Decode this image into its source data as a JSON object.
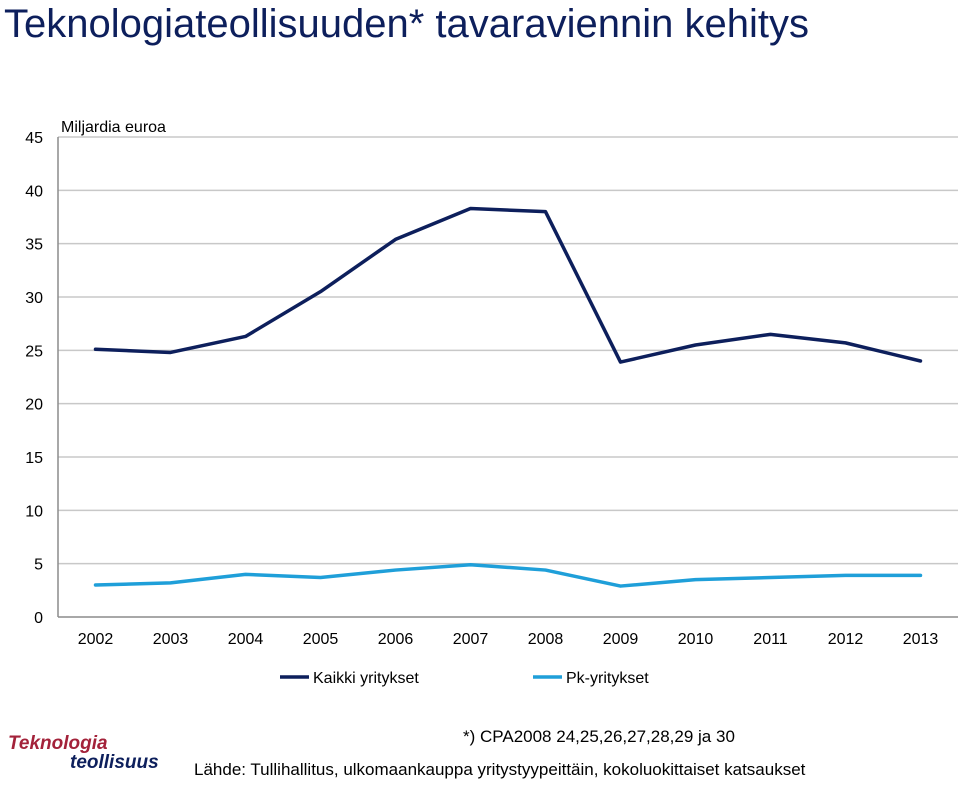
{
  "title": "Teknologiateollisuuden* tavaraviennin kehitys",
  "chart_data": {
    "type": "line",
    "ylabel": "Miljardia euroa",
    "ylim": [
      0,
      45
    ],
    "yticks": [
      "0",
      "5",
      "10",
      "15",
      "20",
      "25",
      "30",
      "35",
      "40",
      "45"
    ],
    "categories": [
      "2002",
      "2003",
      "2004",
      "2005",
      "2006",
      "2007",
      "2008",
      "2009",
      "2010",
      "2011",
      "2012",
      "2013"
    ],
    "grid": true,
    "legend_position": "bottom",
    "series": [
      {
        "name": "Kaikki yritykset",
        "color": "#0d1f5c",
        "values": [
          25.1,
          24.8,
          26.3,
          30.5,
          35.4,
          38.3,
          38.0,
          23.9,
          25.5,
          26.5,
          25.7,
          24.0
        ]
      },
      {
        "name": "Pk-yritykset",
        "color": "#1f9fd9",
        "values": [
          3.0,
          3.2,
          4.0,
          3.7,
          4.4,
          4.9,
          4.4,
          2.9,
          3.5,
          3.7,
          3.9,
          3.9
        ]
      }
    ]
  },
  "logo": {
    "line1": "Teknologia",
    "line2": "teollisuus"
  },
  "footnote": "*) CPA2008 24,25,26,27,28,29 ja 30",
  "source": "Lähde: Tullihallitus, ulkomaankauppa yritystyypeittäin, kokoluokittaiset katsaukset"
}
